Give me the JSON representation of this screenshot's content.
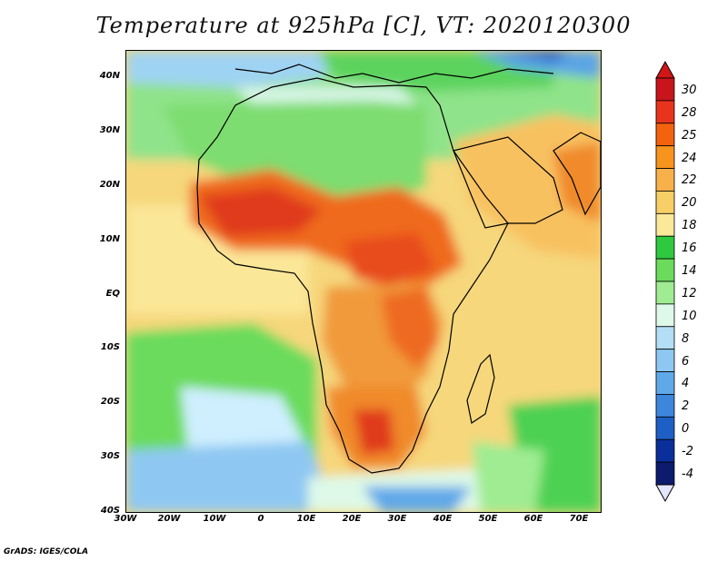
{
  "title": "Temperature at 925hPa [C], VT: 2020120300",
  "credit": "GrADS: IGES/COLA",
  "axes": {
    "lon_labels": [
      "30W",
      "20W",
      "10W",
      "0",
      "10E",
      "20E",
      "30E",
      "40E",
      "50E",
      "60E",
      "70E"
    ],
    "lat_labels": [
      "40N",
      "30N",
      "20N",
      "10N",
      "EQ",
      "10S",
      "20S",
      "30S",
      "40S"
    ]
  },
  "colorbar": {
    "labels": [
      "30",
      "28",
      "25",
      "24",
      "22",
      "20",
      "18",
      "16",
      "14",
      "12",
      "10",
      "8",
      "6",
      "4",
      "2",
      "0",
      "-2",
      "-4"
    ],
    "colors": [
      "#c8151b",
      "#e8341d",
      "#f4620e",
      "#f7941d",
      "#f8b14a",
      "#f8cf66",
      "#fbe99a",
      "#2ec93f",
      "#6bdb5b",
      "#9fec92",
      "#def9e8",
      "#b4ddf6",
      "#8ec8f2",
      "#60a9e9",
      "#3c86dc",
      "#1e5fc5",
      "#0b2f9a",
      "#0d1a6e"
    ],
    "top_color": "#d21515",
    "bottom_color": "#e4e6fb"
  }
}
